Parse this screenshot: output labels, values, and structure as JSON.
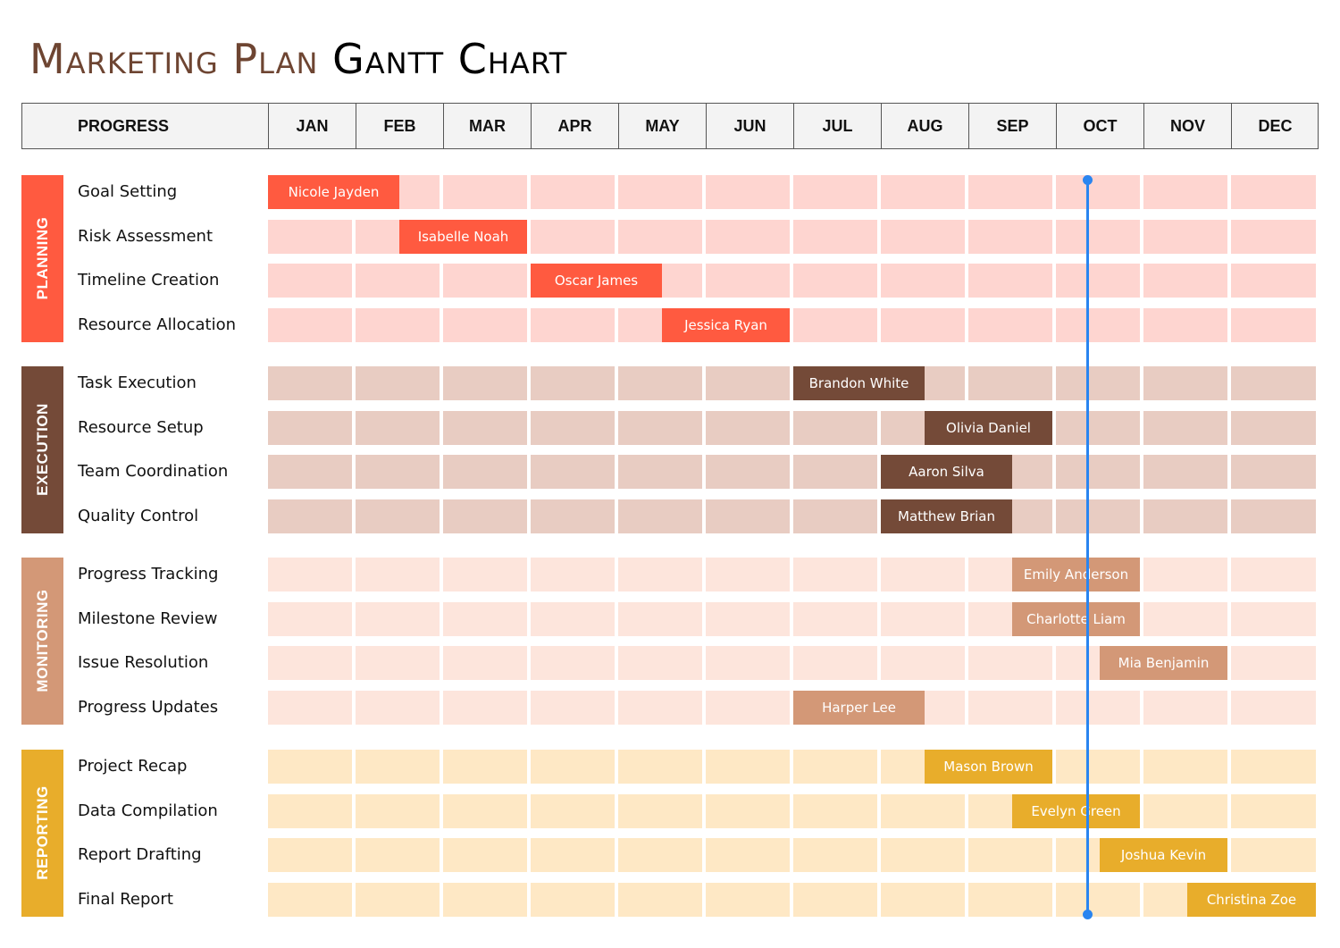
{
  "title": {
    "part1": "Marketing Plan",
    "part2": "Gantt Chart"
  },
  "header": {
    "progress_label": "PROGRESS",
    "months": [
      "JAN",
      "FEB",
      "MAR",
      "APR",
      "MAY",
      "JUN",
      "JUL",
      "AUG",
      "SEP",
      "OCT",
      "NOV",
      "DEC"
    ]
  },
  "colors": {
    "planning": {
      "bar": "#ff5a40",
      "cell": "#fed5d0"
    },
    "execution": {
      "bar": "#744a38",
      "cell": "#e8ccc2"
    },
    "monitoring": {
      "bar": "#d39877",
      "cell": "#fde5dc"
    },
    "reporting": {
      "bar": "#e8ad2b",
      "cell": "#fee8c5"
    },
    "today_marker": "#2a85f0"
  },
  "chart_data": {
    "type": "gantt",
    "title": "Marketing Plan Gantt Chart",
    "x_axis": {
      "unit": "month",
      "categories": [
        "JAN",
        "FEB",
        "MAR",
        "APR",
        "MAY",
        "JUN",
        "JUL",
        "AUG",
        "SEP",
        "OCT",
        "NOV",
        "DEC"
      ],
      "range": [
        0,
        12
      ]
    },
    "today_marker_month": 9.36,
    "sections": [
      {
        "name": "PLANNING",
        "color_key": "planning",
        "tasks": [
          {
            "task": "Goal Setting",
            "owner": "Nicole Jayden",
            "start": 0.0,
            "end": 1.5
          },
          {
            "task": "Risk Assessment",
            "owner": "Isabelle Noah",
            "start": 1.5,
            "end": 3.0
          },
          {
            "task": "Timeline Creation",
            "owner": "Oscar James",
            "start": 3.0,
            "end": 4.5
          },
          {
            "task": "Resource Allocation",
            "owner": "Jessica Ryan",
            "start": 4.5,
            "end": 6.0
          }
        ]
      },
      {
        "name": "EXECUTION",
        "color_key": "execution",
        "tasks": [
          {
            "task": "Task Execution",
            "owner": "Brandon White",
            "start": 6.0,
            "end": 7.5
          },
          {
            "task": "Resource Setup",
            "owner": "Olivia Daniel",
            "start": 7.5,
            "end": 9.0
          },
          {
            "task": "Team Coordination",
            "owner": "Aaron Silva",
            "start": 7.0,
            "end": 8.5
          },
          {
            "task": "Quality Control",
            "owner": "Matthew Brian",
            "start": 7.0,
            "end": 8.5
          }
        ]
      },
      {
        "name": "MONITORING",
        "color_key": "monitoring",
        "tasks": [
          {
            "task": "Progress Tracking",
            "owner": "Emily Anderson",
            "start": 8.5,
            "end": 10.0
          },
          {
            "task": "Milestone Review",
            "owner": "Charlotte Liam",
            "start": 8.5,
            "end": 10.0
          },
          {
            "task": "Issue Resolution",
            "owner": "Mia Benjamin",
            "start": 9.5,
            "end": 11.0
          },
          {
            "task": "Progress Updates",
            "owner": "Harper Lee",
            "start": 6.0,
            "end": 7.5
          }
        ]
      },
      {
        "name": "REPORTING",
        "color_key": "reporting",
        "tasks": [
          {
            "task": "Project Recap",
            "owner": "Mason Brown",
            "start": 7.5,
            "end": 9.0
          },
          {
            "task": "Data Compilation",
            "owner": "Evelyn Green",
            "start": 8.5,
            "end": 10.0
          },
          {
            "task": "Report Drafting",
            "owner": "Joshua Kevin",
            "start": 9.5,
            "end": 11.0
          },
          {
            "task": "Final Report",
            "owner": "Christina Zoe",
            "start": 10.5,
            "end": 12.0
          }
        ]
      }
    ]
  }
}
